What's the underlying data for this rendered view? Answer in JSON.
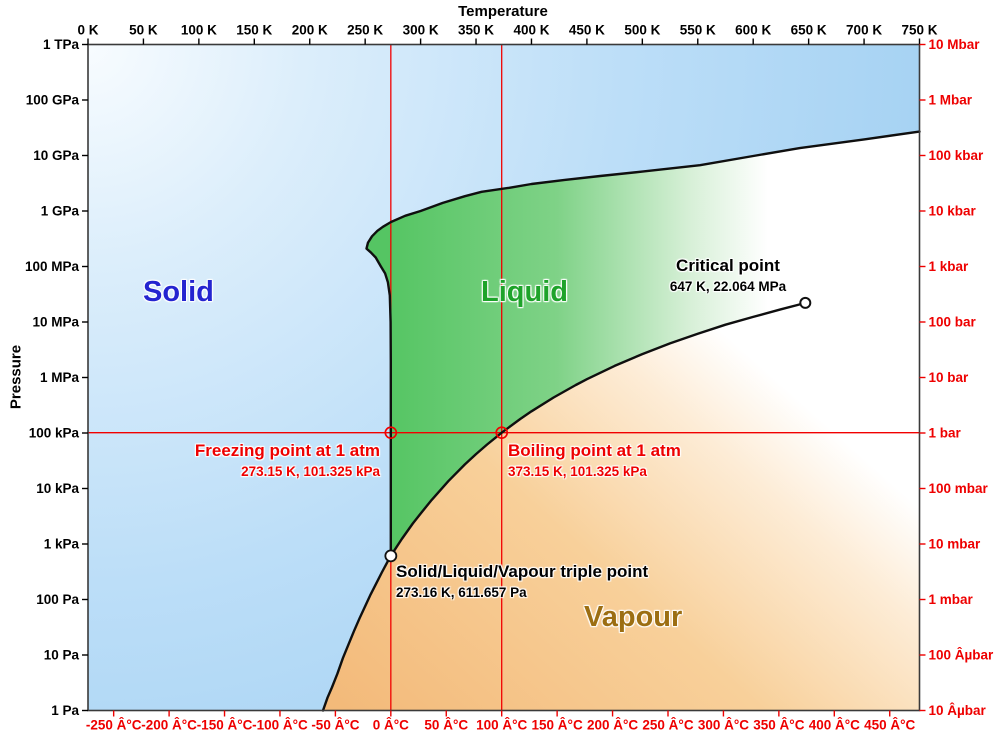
{
  "chart_data": {
    "type": "area",
    "variant": "pressure-temperature-phase-diagram",
    "title": "Temperature",
    "palette": {
      "red": "#ee0000",
      "red_line": "#f10000",
      "frame": "#3a3a3a",
      "curve": "#0f0f0f",
      "solid_fill_start": "#f8fcff",
      "solid_fill_end": "#9ccdf0",
      "liquid_fill_start": "#55c563",
      "vapour_fill_start": "#f3ba7a"
    },
    "axes": {
      "top": {
        "title": "Temperature",
        "unit": "K",
        "range": [
          0,
          750
        ],
        "values": [
          0,
          50,
          100,
          150,
          200,
          250,
          300,
          350,
          400,
          450,
          500,
          550,
          600,
          650,
          700,
          750
        ],
        "labels": [
          "0 K",
          "50 K",
          "100 K",
          "150 K",
          "200 K",
          "250 K",
          "300 K",
          "350 K",
          "400 K",
          "450 K",
          "500 K",
          "550 K",
          "600 K",
          "650 K",
          "700 K",
          "750 K"
        ]
      },
      "bottom": {
        "unit": "Â°C",
        "values": [
          -250,
          -200,
          -150,
          -100,
          -50,
          0,
          50,
          100,
          150,
          200,
          250,
          300,
          350,
          400,
          450
        ],
        "labels": [
          "-250 Â°C",
          "-200 Â°C",
          "-150 Â°C",
          "-100 Â°C",
          "-50 Â°C",
          "0 Â°C",
          "50 Â°C",
          "100 Â°C",
          "150 Â°C",
          "200 Â°C",
          "250 Â°C",
          "300 Â°C",
          "350 Â°C",
          "400 Â°C",
          "450 Â°C"
        ]
      },
      "left": {
        "title": "Pressure",
        "scale": "log",
        "range_pa": [
          1,
          1000000000000
        ],
        "exponents": [
          12,
          11,
          10,
          9,
          8,
          7,
          6,
          5,
          4,
          3,
          2,
          1,
          0
        ],
        "labels": [
          "1 TPa",
          "100 GPa",
          "10 GPa",
          "1 GPa",
          "100 MPa",
          "10 MPa",
          "1 MPa",
          "100 kPa",
          "10 kPa",
          "1 kPa",
          "100 Pa",
          "10 Pa",
          "1 Pa"
        ]
      },
      "right": {
        "unit": "bar",
        "scale": "log",
        "exponents": [
          12,
          11,
          10,
          9,
          8,
          7,
          6,
          5,
          4,
          3,
          2,
          1,
          0
        ],
        "labels": [
          "10 Mbar",
          "1 Mbar",
          "100 kbar",
          "10 kbar",
          "1 kbar",
          "100 bar",
          "10 bar",
          "1 bar",
          "100 mbar",
          "10 mbar",
          "1 mbar",
          "100 Âµbar",
          "10 Âµbar"
        ]
      }
    },
    "regions": [
      {
        "name": "Solid",
        "color": "#2424d0"
      },
      {
        "name": "Liquid",
        "color": "#1ea32a"
      },
      {
        "name": "Vapour",
        "color": "#9c6e12"
      }
    ],
    "curves": {
      "sublimation_K_Pa": [
        [
          212,
          1
        ],
        [
          216,
          1.7
        ],
        [
          220,
          2.6
        ],
        [
          225,
          4.6
        ],
        [
          230,
          8.9
        ],
        [
          235,
          15.5
        ],
        [
          240,
          27.3
        ],
        [
          245,
          46
        ],
        [
          250,
          76
        ],
        [
          255,
          124
        ],
        [
          260,
          196
        ],
        [
          265,
          306
        ],
        [
          270,
          470
        ],
        [
          273.16,
          611.657
        ]
      ],
      "melting_K_Pa": [
        [
          273.16,
          611.657
        ],
        [
          273.15,
          101325
        ],
        [
          273.1,
          2000000
        ],
        [
          272.9,
          10000000
        ],
        [
          272.2,
          30000000
        ],
        [
          270.5,
          52000000
        ],
        [
          268,
          75000000
        ],
        [
          264.2,
          100000000
        ],
        [
          259.5,
          145000000
        ],
        [
          255,
          180000000
        ],
        [
          251.165,
          209900000
        ],
        [
          252.6,
          270000000
        ],
        [
          256.16,
          350100000
        ],
        [
          261,
          440000000
        ],
        [
          266,
          520000000
        ],
        [
          273.31,
          632400000
        ],
        [
          286,
          820000000
        ],
        [
          300,
          1000000000
        ],
        [
          320,
          1400000000
        ],
        [
          340,
          1850000000
        ],
        [
          355,
          2216000000
        ],
        [
          380,
          2620000000
        ],
        [
          400,
          3070000000
        ],
        [
          430,
          3630000000
        ],
        [
          462,
          4270000000
        ],
        [
          500,
          5130000000
        ],
        [
          552,
          6700000000
        ],
        [
          600,
          9800000000
        ],
        [
          642,
          13600000000
        ],
        [
          700,
          19500000000
        ],
        [
          750,
          27000000000
        ]
      ],
      "vaporization_K_Pa": [
        [
          273.16,
          611.657
        ],
        [
          283,
          1228
        ],
        [
          293,
          2339
        ],
        [
          300,
          3537
        ],
        [
          310,
          6231
        ],
        [
          325,
          13530
        ],
        [
          340,
          27190
        ],
        [
          350,
          41680
        ],
        [
          360,
          62140
        ],
        [
          373.15,
          101325
        ],
        [
          390,
          179640
        ],
        [
          400,
          245770
        ],
        [
          420,
          437000
        ],
        [
          440,
          733000
        ],
        [
          450,
          932200
        ],
        [
          475,
          1616000
        ],
        [
          500,
          2639000
        ],
        [
          525,
          4113000
        ],
        [
          550,
          6117000
        ],
        [
          575,
          8925000
        ],
        [
          600,
          12345000
        ],
        [
          625,
          16910000
        ],
        [
          640,
          20270000
        ],
        [
          647,
          22064000
        ]
      ]
    },
    "points": {
      "triple": {
        "T_K": 273.16,
        "P_Pa": 611.657
      },
      "critical": {
        "T_K": 647,
        "P_Pa": 22064000
      },
      "freezing": {
        "T_K": 273.15,
        "P_Pa": 101325
      },
      "boiling": {
        "T_K": 373.15,
        "P_Pa": 101325
      }
    },
    "reference_lines": {
      "vertical_K": [
        273.15,
        373.15
      ],
      "horizontal_Pa": 101325
    }
  },
  "annotations": {
    "critical": {
      "title": "Critical point",
      "detail": "647 K, 22.064 MPa"
    },
    "freezing": {
      "title": "Freezing point at 1 atm",
      "detail": "273.15 K, 101.325 kPa"
    },
    "boiling": {
      "title": "Boiling point at 1 atm",
      "detail": "373.15 K, 101.325 kPa"
    },
    "triple": {
      "title": "Solid/Liquid/Vapour triple point",
      "detail": "273.16 K, 611.657 Pa"
    }
  }
}
